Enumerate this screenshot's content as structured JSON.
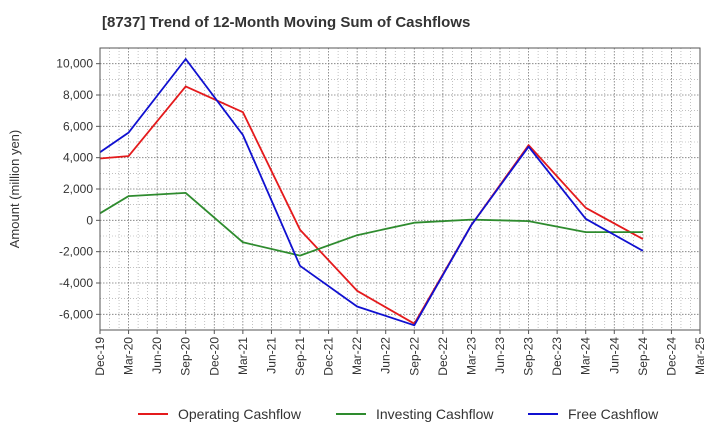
{
  "chart_data": {
    "type": "line",
    "title": "[8737]  Trend of 12-Month Moving Sum of Cashflows",
    "xlabel": "",
    "ylabel": "Amount (million yen)",
    "categories": [
      "Dec-19",
      "Mar-20",
      "Jun-20",
      "Sep-20",
      "Dec-20",
      "Mar-21",
      "Jun-21",
      "Sep-21",
      "Dec-21",
      "Mar-22",
      "Jun-22",
      "Sep-22",
      "Dec-22",
      "Mar-23",
      "Jun-23",
      "Sep-23",
      "Dec-23",
      "Mar-24",
      "Jun-24",
      "Sep-24",
      "Dec-24",
      "Mar-25"
    ],
    "ylim": [
      -7000,
      11000
    ],
    "yticks": [
      -6000,
      -4000,
      -2000,
      0,
      2000,
      4000,
      6000,
      8000,
      10000
    ],
    "ytick_labels": [
      "-6,000",
      "-4,000",
      "-2,000",
      "0",
      "2,000",
      "4,000",
      "6,000",
      "8,000",
      "10,000"
    ],
    "grid": true,
    "legend_position": "bottom",
    "series": [
      {
        "name": "Operating Cashflow",
        "color": "#e41a1c",
        "points": [
          [
            0,
            3950
          ],
          [
            1,
            4100
          ],
          [
            3,
            8550
          ],
          [
            5,
            6900
          ],
          [
            7,
            -600
          ],
          [
            9,
            -4500
          ],
          [
            11,
            -6600
          ],
          [
            13,
            -300
          ],
          [
            15,
            4800
          ],
          [
            17,
            800
          ],
          [
            19,
            -1200
          ]
        ]
      },
      {
        "name": "Investing Cashflow",
        "color": "#2e8b2e",
        "points": [
          [
            0,
            450
          ],
          [
            1,
            1550
          ],
          [
            3,
            1750
          ],
          [
            5,
            -1400
          ],
          [
            7,
            -2250
          ],
          [
            9,
            -950
          ],
          [
            11,
            -150
          ],
          [
            13,
            50
          ],
          [
            15,
            -50
          ],
          [
            17,
            -750
          ],
          [
            19,
            -750
          ]
        ]
      },
      {
        "name": "Free Cashflow",
        "color": "#1010d0",
        "points": [
          [
            0,
            4350
          ],
          [
            1,
            5600
          ],
          [
            3,
            10300
          ],
          [
            5,
            5450
          ],
          [
            7,
            -2900
          ],
          [
            9,
            -5500
          ],
          [
            11,
            -6700
          ],
          [
            13,
            -300
          ],
          [
            15,
            4700
          ],
          [
            17,
            100
          ],
          [
            19,
            -1950
          ]
        ]
      }
    ]
  }
}
